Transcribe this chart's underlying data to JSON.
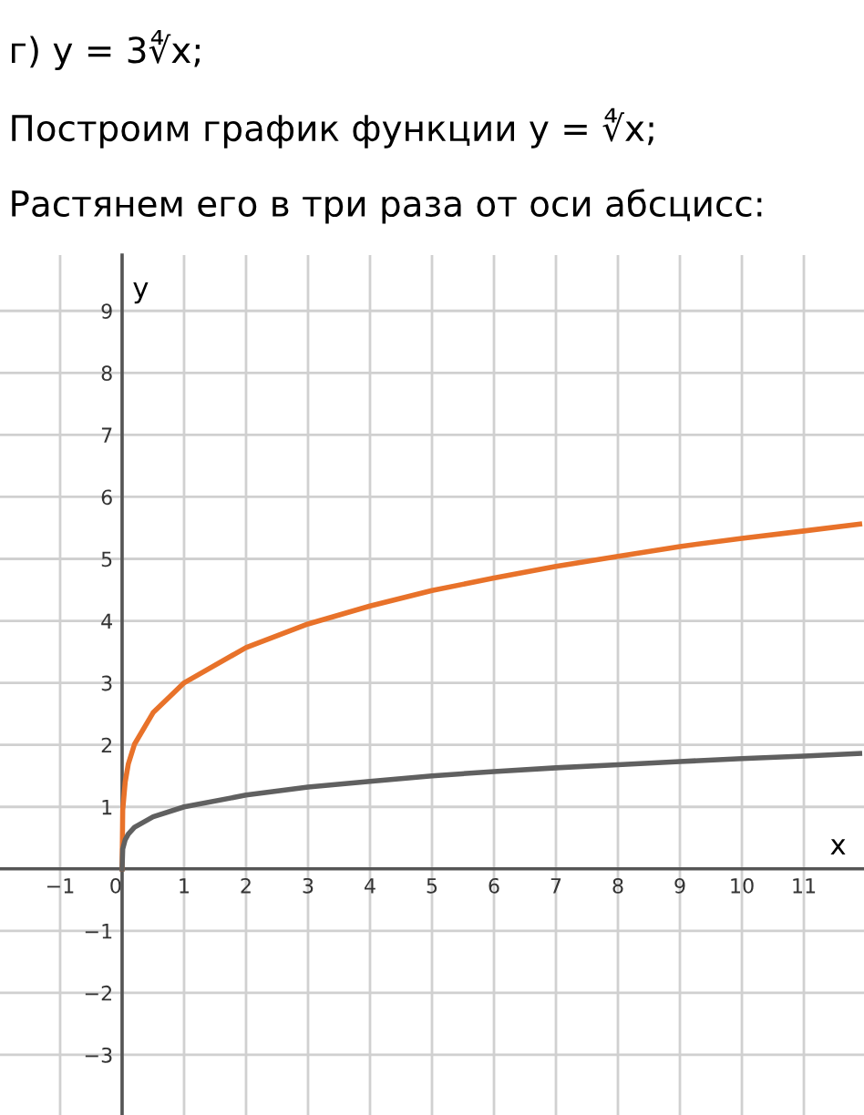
{
  "chart_data": {
    "type": "line",
    "title": "г) y = 3∜x;",
    "subtitle": "Построим график функции y = ∜x;",
    "annotations": [
      "Растянем его в три раза от оси абсцисс:"
    ],
    "xlabel": "x",
    "ylabel": "y",
    "x": [
      0,
      0.01,
      0.05,
      0.1,
      0.2,
      0.5,
      1,
      2,
      3,
      4,
      5,
      6,
      7,
      8,
      9,
      10,
      11,
      11.9
    ],
    "series": [
      {
        "color": "#e8722a",
        "values": [
          0,
          0.95,
          1.4,
          1.69,
          2.01,
          2.52,
          3,
          3.57,
          3.95,
          4.24,
          4.49,
          4.69,
          4.88,
          5.04,
          5.2,
          5.33,
          5.45,
          5.56
        ]
      },
      {
        "color": "#606060",
        "values": [
          0,
          0.32,
          0.47,
          0.56,
          0.67,
          0.84,
          1,
          1.19,
          1.32,
          1.41,
          1.5,
          1.57,
          1.63,
          1.68,
          1.73,
          1.78,
          1.82,
          1.86
        ]
      }
    ],
    "xlim": [
      -1.97,
      11.97
    ],
    "ylim": [
      -3.97,
      9.9
    ],
    "xticks": [
      -1,
      0,
      1,
      2,
      3,
      4,
      5,
      6,
      7,
      8,
      9,
      10,
      11
    ],
    "yticks": [
      -3,
      -2,
      -1,
      1,
      2,
      3,
      4,
      5,
      6,
      7,
      8,
      9
    ],
    "grid": true,
    "legend": false,
    "marker": "none",
    "line_style": "solid"
  }
}
